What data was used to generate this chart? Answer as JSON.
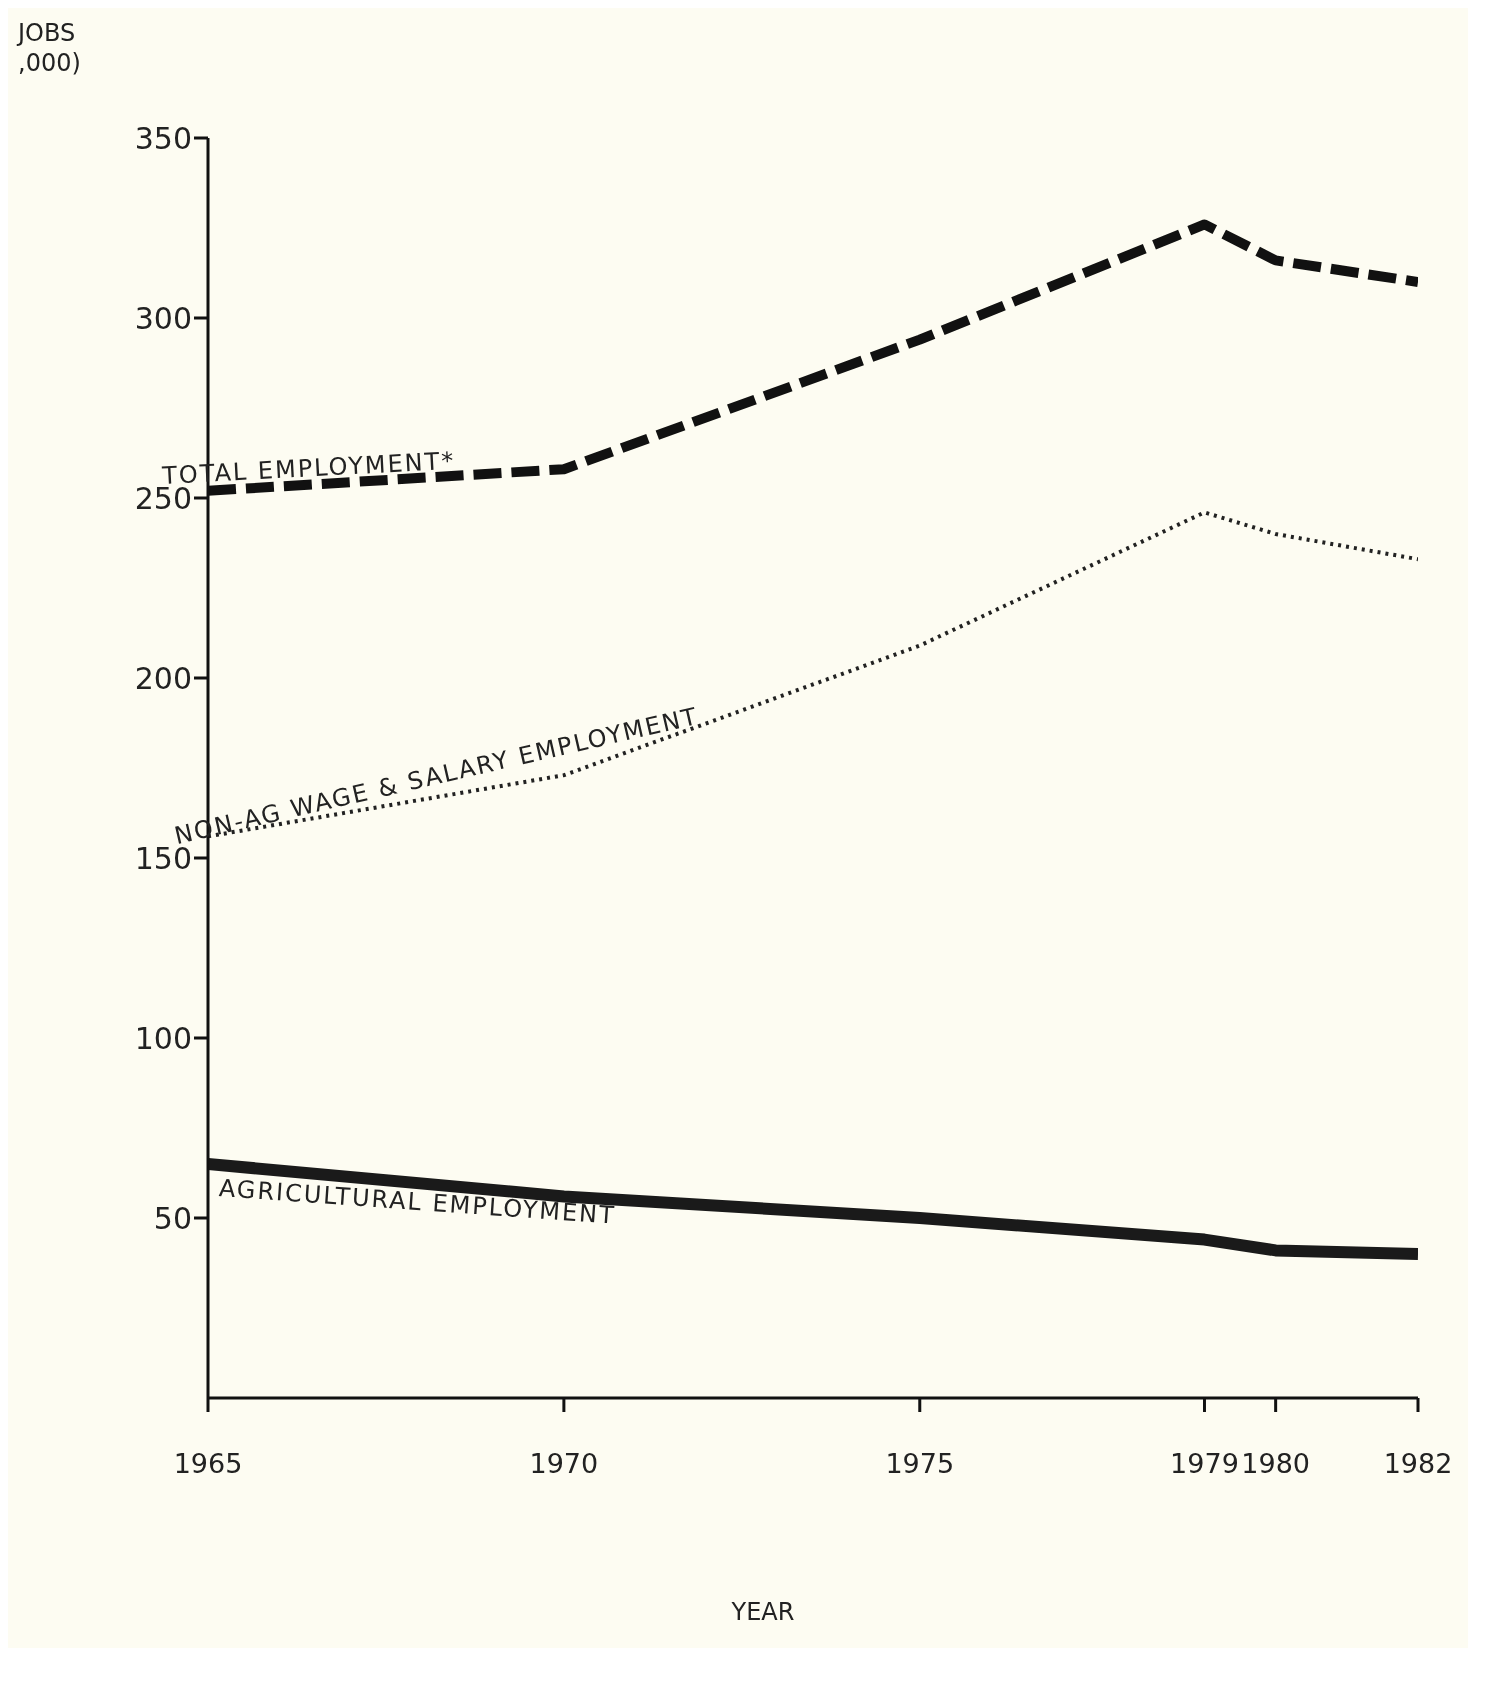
{
  "chart_data": {
    "type": "line",
    "ylabel": "JOBS\n,000)",
    "xlabel": "YEAR",
    "x": [
      1965,
      1970,
      1975,
      1979,
      1980,
      1982
    ],
    "series": [
      {
        "name": "TOTAL EMPLOYMENT*",
        "color": "#111111",
        "line_style": "dashed",
        "values": [
          252,
          258,
          294,
          326,
          316,
          310
        ]
      },
      {
        "name": "NON-AG WAGE & SALARY EMPLOYMENT",
        "color": "#222222",
        "line_style": "dotted",
        "values": [
          156,
          173,
          209,
          246,
          240,
          233
        ]
      },
      {
        "name": "AGRICULTURAL EMPLOYMENT",
        "color": "#1a1a1a",
        "line_style": "solid",
        "values": [
          65,
          56,
          50,
          44,
          41,
          40
        ]
      }
    ],
    "xlim": [
      1965,
      1982
    ],
    "xticks": [
      1965,
      1970,
      1975,
      1979,
      1980,
      1982
    ],
    "ylim": [
      0,
      350
    ],
    "yticks": [
      50,
      100,
      150,
      200,
      250,
      300,
      350
    ],
    "grid": false,
    "legend": false,
    "marker": "none"
  }
}
